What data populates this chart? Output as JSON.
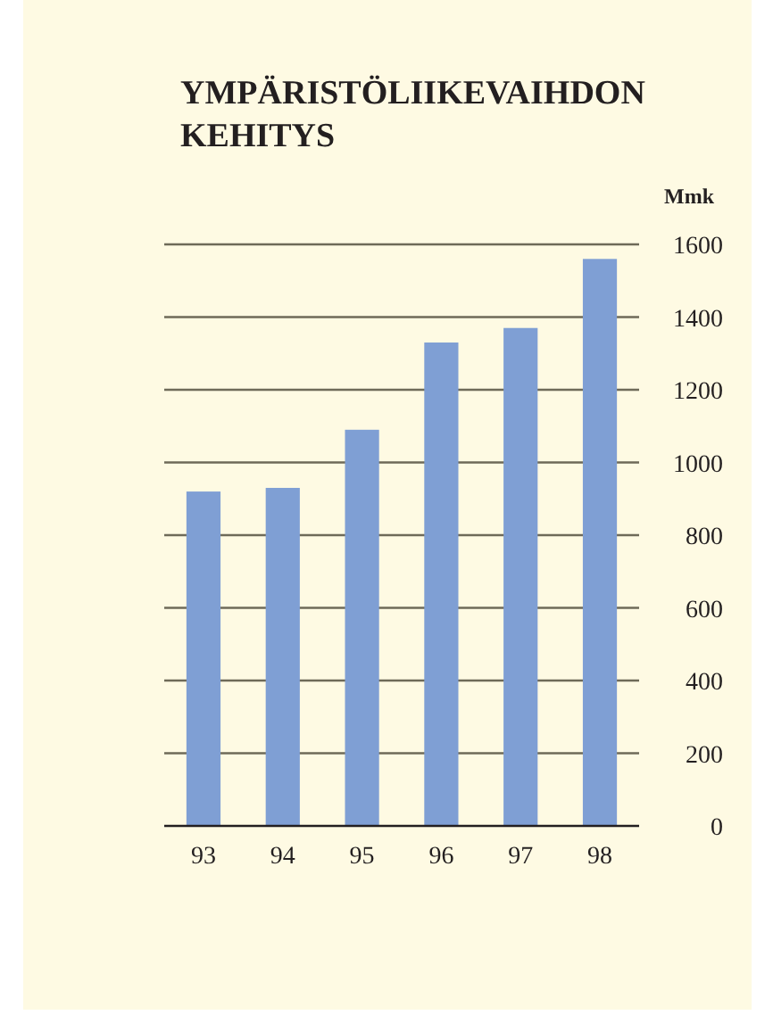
{
  "chart_data": {
    "type": "bar",
    "title": "YMPÄRISTÖLIIKEVAIHDON KEHITYS",
    "ylabel": "Mmk",
    "categories": [
      "93",
      "94",
      "95",
      "96",
      "97",
      "98"
    ],
    "values": [
      920,
      930,
      1090,
      1330,
      1370,
      1560
    ],
    "color": "#7f9fd4",
    "ylim": [
      0,
      1600
    ],
    "yticks": [
      0,
      200,
      400,
      600,
      800,
      1000,
      1200,
      1400,
      1600
    ],
    "grid": "y"
  }
}
